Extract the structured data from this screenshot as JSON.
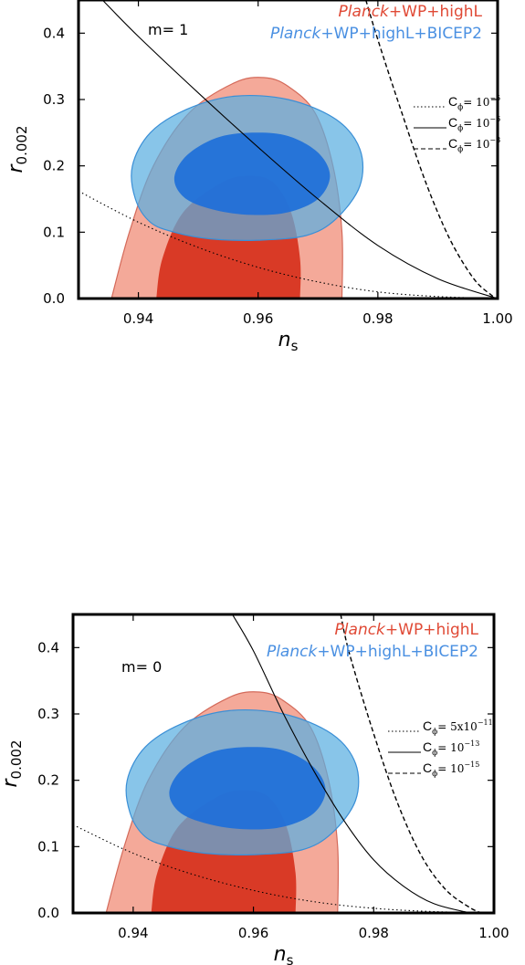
{
  "chart_data": [
    {
      "type": "contour",
      "xlabel": "n",
      "xlabel_sub": "s",
      "ylabel": "r",
      "ylabel_sub": "0.002",
      "xlim": [
        0.93,
        1.0
      ],
      "ylim": [
        0.0,
        0.45
      ],
      "xticks": [
        0.94,
        0.96,
        0.98,
        1.0
      ],
      "xtick_labels": [
        "0.94",
        "0.96",
        "0.98",
        "1.00"
      ],
      "yticks": [
        0.0,
        0.1,
        0.2,
        0.3,
        0.4
      ],
      "ytick_labels": [
        "0.0",
        "0.1",
        "0.2",
        "0.3",
        "0.4"
      ],
      "annotation": "m= 1",
      "legend": [
        {
          "italic": "Planck",
          "rest": "+WP+highL",
          "color": "#e04a36"
        },
        {
          "italic": "Planck",
          "rest": "+WP+highL+BICEP2",
          "color": "#4a90e2"
        }
      ],
      "contours": [
        {
          "name": "Planck+WP+highL",
          "levels": [
            {
              "level": "outer",
              "color": "#f4a999",
              "points": [
                [
                  0.9355,
                  0.0
                ],
                [
                  0.9385,
                  0.1
                ],
                [
                  0.9425,
                  0.2
                ],
                [
                  0.9485,
                  0.28
                ],
                [
                  0.956,
                  0.325
                ],
                [
                  0.961,
                  0.333
                ],
                [
                  0.965,
                  0.32
                ],
                [
                  0.9695,
                  0.28
                ],
                [
                  0.9725,
                  0.2
                ],
                [
                  0.974,
                  0.1
                ],
                [
                  0.974,
                  0.0
                ]
              ]
            },
            {
              "level": "inner",
              "color": "#d93a26",
              "points": [
                [
                  0.943,
                  0.0
                ],
                [
                  0.944,
                  0.06
                ],
                [
                  0.9475,
                  0.13
                ],
                [
                  0.954,
                  0.175
                ],
                [
                  0.9585,
                  0.185
                ],
                [
                  0.9625,
                  0.175
                ],
                [
                  0.9655,
                  0.13
                ],
                [
                  0.967,
                  0.06
                ],
                [
                  0.967,
                  0.0
                ]
              ]
            }
          ]
        },
        {
          "name": "Planck+WP+highL+BICEP2",
          "levels": [
            {
              "level": "outer",
              "color": "#5aaee0",
              "points": [
                [
                  0.946,
                  0.1
                ],
                [
                  0.952,
                  0.09
                ],
                [
                  0.96,
                  0.088
                ],
                [
                  0.968,
                  0.095
                ],
                [
                  0.973,
                  0.12
                ],
                [
                  0.977,
                  0.17
                ],
                [
                  0.977,
                  0.225
                ],
                [
                  0.973,
                  0.27
                ],
                [
                  0.965,
                  0.3
                ],
                [
                  0.956,
                  0.305
                ],
                [
                  0.948,
                  0.285
                ],
                [
                  0.942,
                  0.25
                ],
                [
                  0.939,
                  0.2
                ],
                [
                  0.9395,
                  0.15
                ],
                [
                  0.942,
                  0.115
                ]
              ]
            },
            {
              "level": "inner",
              "color": "#1e6fd9",
              "points": [
                [
                  0.953,
                  0.133
                ],
                [
                  0.959,
                  0.126
                ],
                [
                  0.965,
                  0.13
                ],
                [
                  0.97,
                  0.15
                ],
                [
                  0.972,
                  0.185
                ],
                [
                  0.97,
                  0.22
                ],
                [
                  0.965,
                  0.245
                ],
                [
                  0.959,
                  0.25
                ],
                [
                  0.953,
                  0.242
                ],
                [
                  0.948,
                  0.215
                ],
                [
                  0.946,
                  0.18
                ],
                [
                  0.948,
                  0.15
                ]
              ]
            }
          ]
        }
      ],
      "curves": [
        {
          "label": "C",
          "label_sub": "ϕ",
          "label_eq": "= 10",
          "label_exp": "−5",
          "style": "dotted",
          "points": [
            [
              0.93,
              0.162
            ],
            [
              0.94,
              0.115
            ],
            [
              0.95,
              0.077
            ],
            [
              0.96,
              0.047
            ],
            [
              0.97,
              0.025
            ],
            [
              0.98,
              0.01
            ],
            [
              0.99,
              0.003
            ],
            [
              1.0,
              0.0
            ]
          ]
        },
        {
          "label": "C",
          "label_sub": "ϕ",
          "label_eq": "= 10",
          "label_exp": "−6",
          "style": "solid",
          "points": [
            [
              0.934,
              0.45
            ],
            [
              0.94,
              0.395
            ],
            [
              0.95,
              0.31
            ],
            [
              0.96,
              0.228
            ],
            [
              0.97,
              0.15
            ],
            [
              0.98,
              0.08
            ],
            [
              0.99,
              0.03
            ],
            [
              1.0,
              0.0
            ]
          ]
        },
        {
          "label": "C",
          "label_sub": "ϕ",
          "label_eq": "= 10",
          "label_exp": "−8",
          "style": "dashed",
          "points": [
            [
              0.978,
              0.45
            ],
            [
              0.98,
              0.39
            ],
            [
              0.984,
              0.28
            ],
            [
              0.988,
              0.175
            ],
            [
              0.992,
              0.09
            ],
            [
              0.996,
              0.03
            ],
            [
              0.999,
              0.005
            ],
            [
              1.0,
              0.0
            ]
          ]
        }
      ]
    },
    {
      "type": "contour",
      "xlabel": "n",
      "xlabel_sub": "s",
      "ylabel": "r",
      "ylabel_sub": "0.002",
      "xlim": [
        0.93,
        1.0
      ],
      "ylim": [
        0.0,
        0.45
      ],
      "xticks": [
        0.94,
        0.96,
        0.98,
        1.0
      ],
      "xtick_labels": [
        "0.94",
        "0.96",
        "0.98",
        "1.00"
      ],
      "yticks": [
        0.0,
        0.1,
        0.2,
        0.3,
        0.4
      ],
      "ytick_labels": [
        "0.0",
        "0.1",
        "0.2",
        "0.3",
        "0.4"
      ],
      "annotation": "m= 0",
      "legend": [
        {
          "italic": "Planck",
          "rest": "+WP+highL",
          "color": "#e04a36"
        },
        {
          "italic": "Planck",
          "rest": "+WP+highL+BICEP2",
          "color": "#4a90e2"
        }
      ],
      "contours": [
        {
          "name": "Planck+WP+highL",
          "levels": [
            {
              "level": "outer",
              "color": "#f4a999",
              "points": [
                [
                  0.9355,
                  0.0
                ],
                [
                  0.9385,
                  0.1
                ],
                [
                  0.9425,
                  0.2
                ],
                [
                  0.9485,
                  0.28
                ],
                [
                  0.956,
                  0.325
                ],
                [
                  0.961,
                  0.333
                ],
                [
                  0.965,
                  0.32
                ],
                [
                  0.9695,
                  0.28
                ],
                [
                  0.9725,
                  0.2
                ],
                [
                  0.974,
                  0.1
                ],
                [
                  0.974,
                  0.0
                ]
              ]
            },
            {
              "level": "inner",
              "color": "#d93a26",
              "points": [
                [
                  0.943,
                  0.0
                ],
                [
                  0.944,
                  0.06
                ],
                [
                  0.9475,
                  0.13
                ],
                [
                  0.954,
                  0.175
                ],
                [
                  0.9585,
                  0.185
                ],
                [
                  0.9625,
                  0.175
                ],
                [
                  0.9655,
                  0.13
                ],
                [
                  0.967,
                  0.06
                ],
                [
                  0.967,
                  0.0
                ]
              ]
            }
          ]
        },
        {
          "name": "Planck+WP+highL+BICEP2",
          "levels": [
            {
              "level": "outer",
              "color": "#5aaee0",
              "points": [
                [
                  0.946,
                  0.1
                ],
                [
                  0.952,
                  0.09
                ],
                [
                  0.96,
                  0.088
                ],
                [
                  0.968,
                  0.095
                ],
                [
                  0.973,
                  0.12
                ],
                [
                  0.977,
                  0.17
                ],
                [
                  0.977,
                  0.225
                ],
                [
                  0.973,
                  0.27
                ],
                [
                  0.965,
                  0.3
                ],
                [
                  0.956,
                  0.305
                ],
                [
                  0.948,
                  0.285
                ],
                [
                  0.942,
                  0.25
                ],
                [
                  0.939,
                  0.2
                ],
                [
                  0.9395,
                  0.15
                ],
                [
                  0.942,
                  0.115
                ]
              ]
            },
            {
              "level": "inner",
              "color": "#1e6fd9",
              "points": [
                [
                  0.953,
                  0.133
                ],
                [
                  0.959,
                  0.126
                ],
                [
                  0.965,
                  0.13
                ],
                [
                  0.97,
                  0.15
                ],
                [
                  0.972,
                  0.185
                ],
                [
                  0.97,
                  0.22
                ],
                [
                  0.965,
                  0.245
                ],
                [
                  0.959,
                  0.25
                ],
                [
                  0.953,
                  0.242
                ],
                [
                  0.948,
                  0.215
                ],
                [
                  0.946,
                  0.18
                ],
                [
                  0.948,
                  0.15
                ]
              ]
            }
          ]
        }
      ],
      "curves": [
        {
          "label": "C",
          "label_sub": "ϕ",
          "label_eq": "= 5x10",
          "label_exp": "−11",
          "style": "dotted",
          "points": [
            [
              0.93,
              0.133
            ],
            [
              0.94,
              0.09
            ],
            [
              0.95,
              0.058
            ],
            [
              0.96,
              0.034
            ],
            [
              0.97,
              0.017
            ],
            [
              0.98,
              0.007
            ],
            [
              0.99,
              0.002
            ],
            [
              1.0,
              0.0
            ]
          ]
        },
        {
          "label": "C",
          "label_sub": "ϕ",
          "label_eq": "= 10",
          "label_exp": "−13",
          "style": "solid",
          "points": [
            [
              0.9565,
              0.45
            ],
            [
              0.96,
              0.395
            ],
            [
              0.965,
              0.3
            ],
            [
              0.97,
              0.215
            ],
            [
              0.975,
              0.14
            ],
            [
              0.98,
              0.08
            ],
            [
              0.985,
              0.04
            ],
            [
              0.99,
              0.014
            ],
            [
              0.996,
              0.0
            ]
          ]
        },
        {
          "label": "C",
          "label_sub": "ϕ",
          "label_eq": "= 10",
          "label_exp": "−15",
          "style": "dashed",
          "points": [
            [
              0.9745,
              0.45
            ],
            [
              0.976,
              0.39
            ],
            [
              0.98,
              0.27
            ],
            [
              0.984,
              0.165
            ],
            [
              0.988,
              0.085
            ],
            [
              0.992,
              0.035
            ],
            [
              0.996,
              0.008
            ],
            [
              0.998,
              0.0
            ]
          ]
        }
      ]
    }
  ]
}
